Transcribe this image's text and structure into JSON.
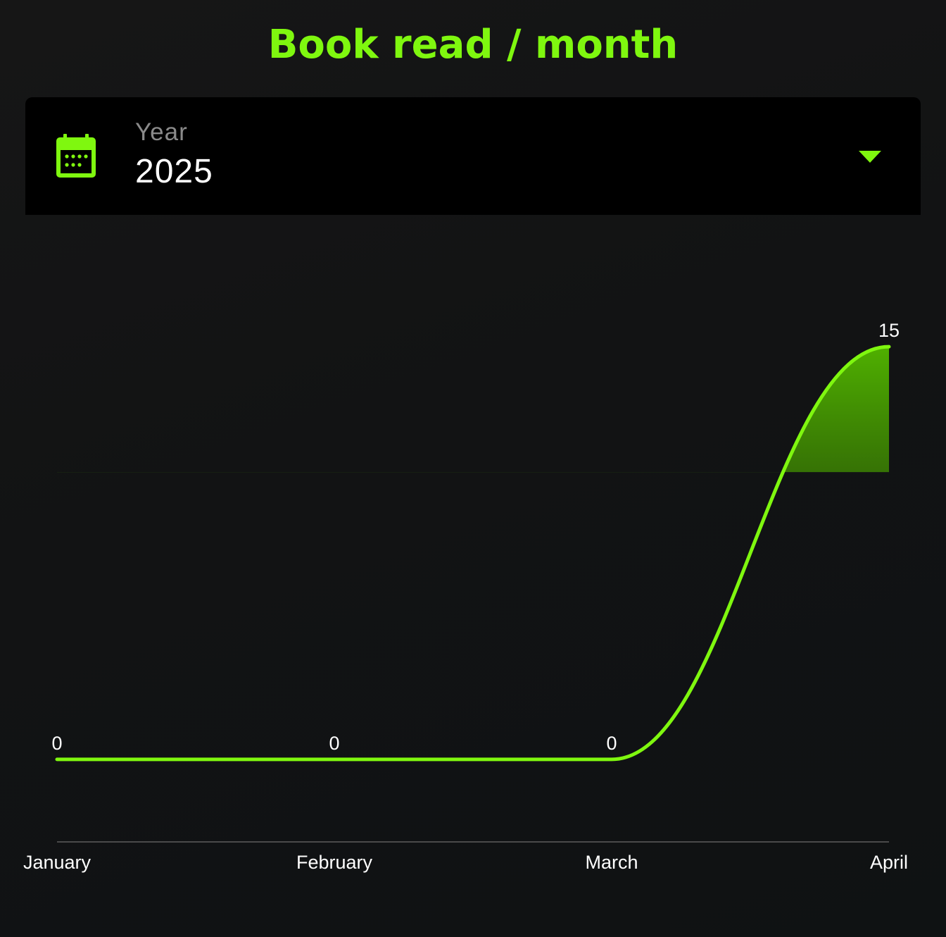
{
  "title": "Book read / month",
  "colors": {
    "accent": "#7ff70f",
    "text": "#ffffff",
    "muted": "#8a8a8a",
    "select_bg": "#000000",
    "axis": "#4a4a4a"
  },
  "year_select": {
    "label": "Year",
    "value": "2025",
    "icon": "calendar-icon",
    "caret_icon": "dropdown-caret-icon"
  },
  "chart_data": {
    "type": "area",
    "title": "Book read / month",
    "categories": [
      "January",
      "February",
      "March",
      "April"
    ],
    "series": [
      {
        "values": [
          0,
          0,
          0,
          15
        ]
      }
    ],
    "ylim": [
      -3,
      18
    ],
    "data_labels": true,
    "grid": false,
    "smooth": true
  }
}
